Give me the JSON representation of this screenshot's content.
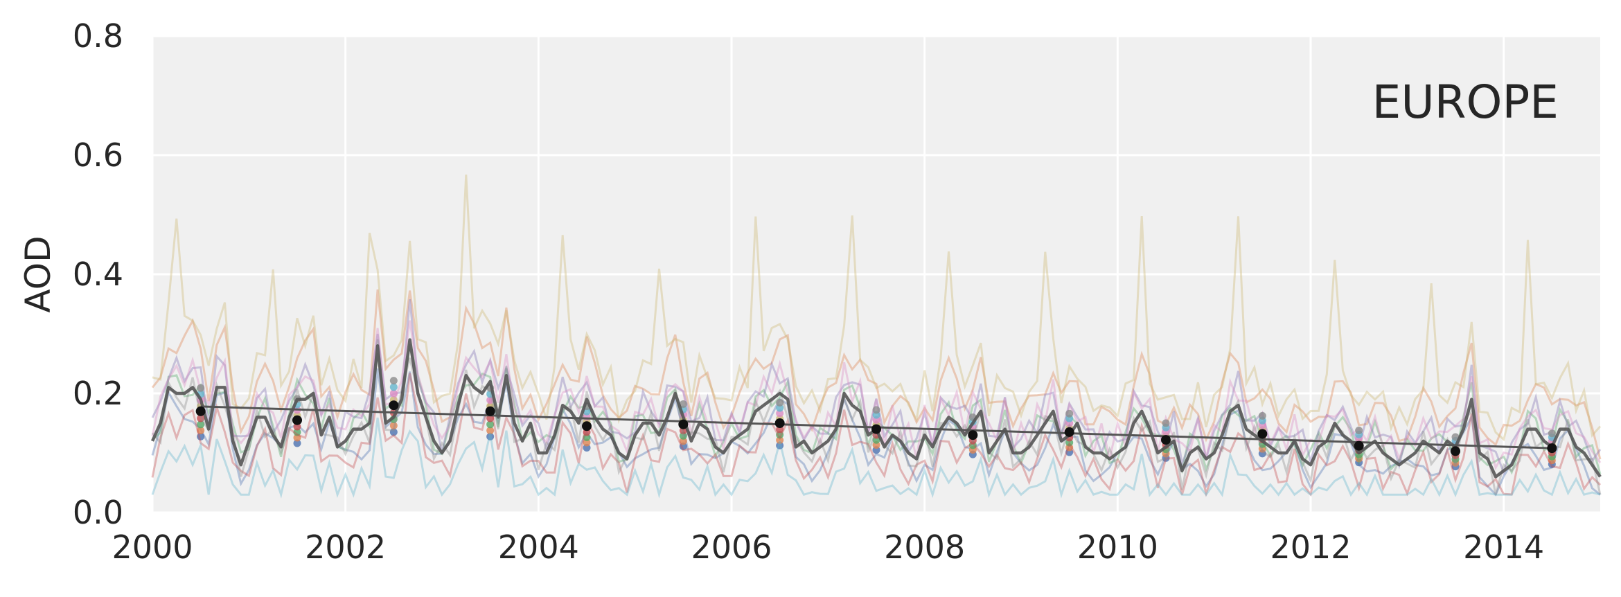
{
  "chart_data": {
    "type": "line",
    "title": "",
    "annotation": "EUROPE",
    "xlabel": "",
    "ylabel": "AOD",
    "xlim": [
      2000,
      2015
    ],
    "ylim": [
      0.0,
      0.8
    ],
    "x_ticks": [
      "2000",
      "2002",
      "2004",
      "2006",
      "2008",
      "2010",
      "2012",
      "2014"
    ],
    "y_ticks": [
      "0.0",
      "0.2",
      "0.4",
      "0.6",
      "0.8"
    ],
    "grid": true,
    "legend": "none",
    "colors": {
      "background": "#f0f0f0",
      "grid": "#ffffff",
      "mean_line": "#555555",
      "annual_points": "#111111",
      "trend_line": "#555555",
      "products": [
        "#4c72b0",
        "#dd8452",
        "#55a868",
        "#c44e52",
        "#8172b3",
        "#ccb974",
        "#da8bc3",
        "#64b5cd",
        "#8c8c8c"
      ]
    },
    "series": [
      {
        "style": "ensemble-mean-monthly",
        "x": [
          2000.0,
          2000.083,
          2000.167,
          2000.25,
          2000.333,
          2000.417,
          2000.5,
          2000.583,
          2000.667,
          2000.75,
          2000.833,
          2000.917,
          2001.0,
          2001.083,
          2001.167,
          2001.25,
          2001.333,
          2001.417,
          2001.5,
          2001.583,
          2001.667,
          2001.75,
          2001.833,
          2001.917,
          2002.0,
          2002.083,
          2002.167,
          2002.25,
          2002.333,
          2002.417,
          2002.5,
          2002.583,
          2002.667,
          2002.75,
          2002.833,
          2002.917,
          2003.0,
          2003.083,
          2003.167,
          2003.25,
          2003.333,
          2003.417,
          2003.5,
          2003.583,
          2003.667,
          2003.75,
          2003.833,
          2003.917,
          2004.0,
          2004.083,
          2004.167,
          2004.25,
          2004.333,
          2004.417,
          2004.5,
          2004.583,
          2004.667,
          2004.75,
          2004.833,
          2004.917,
          2005.0,
          2005.083,
          2005.167,
          2005.25,
          2005.333,
          2005.417,
          2005.5,
          2005.583,
          2005.667,
          2005.75,
          2005.833,
          2005.917,
          2006.0,
          2006.083,
          2006.167,
          2006.25,
          2006.333,
          2006.417,
          2006.5,
          2006.583,
          2006.667,
          2006.75,
          2006.833,
          2006.917,
          2007.0,
          2007.083,
          2007.167,
          2007.25,
          2007.333,
          2007.417,
          2007.5,
          2007.583,
          2007.667,
          2007.75,
          2007.833,
          2007.917,
          2008.0,
          2008.083,
          2008.167,
          2008.25,
          2008.333,
          2008.417,
          2008.5,
          2008.583,
          2008.667,
          2008.75,
          2008.833,
          2008.917,
          2009.0,
          2009.083,
          2009.167,
          2009.25,
          2009.333,
          2009.417,
          2009.5,
          2009.583,
          2009.667,
          2009.75,
          2009.833,
          2009.917,
          2010.0,
          2010.083,
          2010.167,
          2010.25,
          2010.333,
          2010.417,
          2010.5,
          2010.583,
          2010.667,
          2010.75,
          2010.833,
          2010.917,
          2011.0,
          2011.083,
          2011.167,
          2011.25,
          2011.333,
          2011.417,
          2011.5,
          2011.583,
          2011.667,
          2011.75,
          2011.833,
          2011.917,
          2012.0,
          2012.083,
          2012.167,
          2012.25,
          2012.333,
          2012.417,
          2012.5,
          2012.583,
          2012.667,
          2012.75,
          2012.833,
          2012.917,
          2013.0,
          2013.083,
          2013.167,
          2013.25,
          2013.333,
          2013.417,
          2013.5,
          2013.583,
          2013.667,
          2013.75,
          2013.833,
          2013.917,
          2014.0,
          2014.083,
          2014.167,
          2014.25,
          2014.333,
          2014.417,
          2014.5,
          2014.583,
          2014.667,
          2014.75,
          2014.833,
          2014.917,
          2015.0
        ],
        "values": [
          0.12,
          0.15,
          0.21,
          0.2,
          0.2,
          0.21,
          0.19,
          0.14,
          0.21,
          0.21,
          0.12,
          0.08,
          0.12,
          0.16,
          0.16,
          0.13,
          0.11,
          0.16,
          0.19,
          0.19,
          0.2,
          0.13,
          0.16,
          0.11,
          0.12,
          0.14,
          0.14,
          0.15,
          0.28,
          0.15,
          0.16,
          0.19,
          0.29,
          0.2,
          0.16,
          0.12,
          0.1,
          0.12,
          0.18,
          0.23,
          0.21,
          0.2,
          0.22,
          0.16,
          0.23,
          0.15,
          0.12,
          0.15,
          0.1,
          0.1,
          0.13,
          0.18,
          0.17,
          0.15,
          0.19,
          0.16,
          0.14,
          0.13,
          0.1,
          0.09,
          0.13,
          0.15,
          0.15,
          0.13,
          0.16,
          0.2,
          0.16,
          0.12,
          0.15,
          0.14,
          0.11,
          0.1,
          0.12,
          0.13,
          0.14,
          0.17,
          0.18,
          0.19,
          0.2,
          0.19,
          0.11,
          0.12,
          0.1,
          0.11,
          0.12,
          0.14,
          0.2,
          0.18,
          0.17,
          0.13,
          0.14,
          0.11,
          0.13,
          0.12,
          0.1,
          0.09,
          0.13,
          0.11,
          0.14,
          0.16,
          0.15,
          0.13,
          0.15,
          0.17,
          0.1,
          0.12,
          0.14,
          0.1,
          0.1,
          0.11,
          0.13,
          0.15,
          0.17,
          0.12,
          0.13,
          0.15,
          0.11,
          0.1,
          0.1,
          0.09,
          0.1,
          0.11,
          0.15,
          0.17,
          0.14,
          0.1,
          0.11,
          0.12,
          0.07,
          0.1,
          0.11,
          0.09,
          0.1,
          0.13,
          0.17,
          0.18,
          0.14,
          0.13,
          0.12,
          0.11,
          0.1,
          0.1,
          0.12,
          0.09,
          0.08,
          0.11,
          0.12,
          0.15,
          0.13,
          0.12,
          0.1,
          0.11,
          0.12,
          0.1,
          0.09,
          0.08,
          0.09,
          0.1,
          0.12,
          0.11,
          0.1,
          0.12,
          0.11,
          0.14,
          0.19,
          0.1,
          0.09,
          0.06,
          0.07,
          0.08,
          0.11,
          0.14,
          0.14,
          0.12,
          0.11,
          0.14,
          0.14,
          0.11,
          0.1,
          0.08,
          0.06
        ]
      },
      {
        "style": "annual-mean-points",
        "x": [
          2000.5,
          2001.5,
          2002.5,
          2003.5,
          2004.5,
          2005.5,
          2006.5,
          2007.5,
          2008.5,
          2009.5,
          2010.5,
          2011.5,
          2012.5,
          2013.5,
          2014.5
        ],
        "values": [
          0.17,
          0.155,
          0.18,
          0.17,
          0.145,
          0.148,
          0.15,
          0.14,
          0.13,
          0.135,
          0.122,
          0.132,
          0.112,
          0.103,
          0.108
        ]
      },
      {
        "style": "linear-trend",
        "x": [
          2000.5,
          2014.5
        ],
        "values": [
          0.178,
          0.108
        ]
      }
    ]
  }
}
